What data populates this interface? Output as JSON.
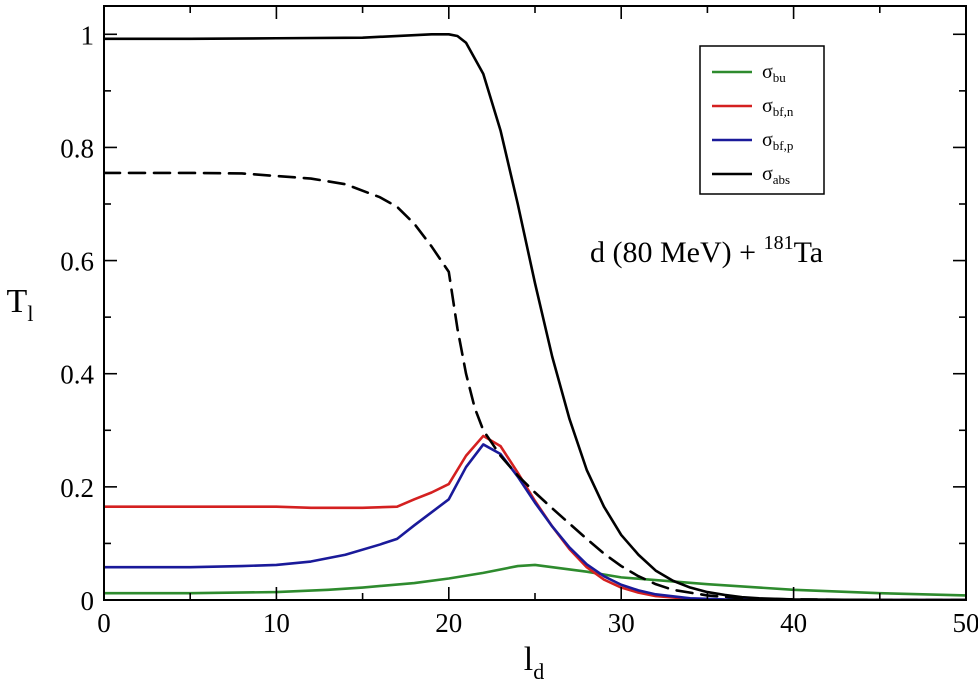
{
  "chart_data": {
    "type": "line",
    "title": "",
    "xlabel": "l",
    "xlabel_sub": "d",
    "ylabel": "T",
    "ylabel_sub": "l",
    "xlim": [
      0,
      50
    ],
    "ylim": [
      0,
      1.05
    ],
    "x_ticks": [
      0,
      10,
      20,
      30,
      40,
      50
    ],
    "x_tick_labels": [
      "0",
      "10",
      "20",
      "30",
      "40",
      "50"
    ],
    "y_ticks": [
      0,
      0.2,
      0.4,
      0.6,
      0.8,
      1
    ],
    "y_tick_labels": [
      "0",
      "0.2",
      "0.4",
      "0.6",
      "0.8",
      "1"
    ],
    "grid": false,
    "legend_position": "top-right",
    "annotation": {
      "prefix": "d (80 MeV) + ",
      "superscript": "181",
      "suffix": "Ta"
    },
    "series": [
      {
        "name": "σ_bu",
        "label": "σ",
        "label_sub": "bu",
        "color": "#2e8b2e",
        "dash": "solid",
        "in_legend": true,
        "x": [
          0,
          5,
          10,
          13,
          15,
          18,
          20,
          22,
          24,
          25,
          26,
          28,
          30,
          35,
          40,
          45,
          50
        ],
        "y": [
          0.012,
          0.012,
          0.014,
          0.018,
          0.022,
          0.03,
          0.038,
          0.048,
          0.06,
          0.062,
          0.058,
          0.05,
          0.04,
          0.028,
          0.018,
          0.012,
          0.008
        ]
      },
      {
        "name": "σ_bf,n",
        "label": "σ",
        "label_sub": "bf,n",
        "color": "#d42020",
        "dash": "solid",
        "in_legend": true,
        "x": [
          0,
          5,
          10,
          12,
          15,
          17,
          18,
          19,
          20,
          21,
          22,
          23,
          24,
          25,
          26,
          27,
          28,
          29,
          30,
          31,
          32,
          34,
          36,
          40,
          45,
          50
        ],
        "y": [
          0.165,
          0.165,
          0.165,
          0.163,
          0.163,
          0.165,
          0.178,
          0.19,
          0.205,
          0.255,
          0.29,
          0.272,
          0.225,
          0.175,
          0.13,
          0.09,
          0.058,
          0.036,
          0.022,
          0.013,
          0.007,
          0.002,
          0.0005,
          0,
          0,
          0
        ]
      },
      {
        "name": "σ_bf,p",
        "label": "σ",
        "label_sub": "bf,p",
        "color": "#1a1a9a",
        "dash": "solid",
        "in_legend": true,
        "x": [
          0,
          5,
          8,
          10,
          12,
          14,
          16,
          17,
          18,
          19,
          20,
          21,
          22,
          23,
          24,
          25,
          26,
          27,
          28,
          29,
          30,
          31,
          32,
          34,
          36,
          40,
          45,
          50
        ],
        "y": [
          0.058,
          0.058,
          0.06,
          0.062,
          0.068,
          0.08,
          0.098,
          0.108,
          0.132,
          0.155,
          0.178,
          0.235,
          0.275,
          0.258,
          0.218,
          0.172,
          0.13,
          0.093,
          0.063,
          0.042,
          0.027,
          0.017,
          0.01,
          0.003,
          0.001,
          0,
          0,
          0
        ]
      },
      {
        "name": "σ_abs",
        "label": "σ",
        "label_sub": "abs",
        "color": "#000000",
        "dash": "solid",
        "in_legend": true,
        "x": [
          0,
          5,
          10,
          15,
          19,
          20,
          20.5,
          21,
          22,
          23,
          24,
          25,
          26,
          27,
          28,
          29,
          30,
          31,
          32,
          33,
          34,
          35,
          36,
          37,
          38,
          40,
          42,
          45,
          50
        ],
        "y": [
          0.992,
          0.992,
          0.993,
          0.994,
          1.0,
          1.0,
          0.997,
          0.985,
          0.93,
          0.83,
          0.7,
          0.56,
          0.43,
          0.32,
          0.23,
          0.165,
          0.115,
          0.08,
          0.052,
          0.034,
          0.022,
          0.014,
          0.009,
          0.005,
          0.003,
          0.001,
          0.0005,
          0,
          0
        ]
      },
      {
        "name": "dashed",
        "label": "",
        "label_sub": "",
        "color": "#000000",
        "dash": "dashed",
        "in_legend": false,
        "x": [
          0,
          5,
          8,
          12,
          14,
          16,
          17,
          18,
          19,
          20,
          20.5,
          21,
          21.5,
          22,
          23,
          24,
          25,
          26,
          27,
          28,
          29,
          30,
          31,
          32,
          33,
          35,
          37,
          40,
          45,
          50
        ],
        "y": [
          0.755,
          0.755,
          0.754,
          0.745,
          0.735,
          0.712,
          0.695,
          0.665,
          0.625,
          0.58,
          0.48,
          0.4,
          0.34,
          0.3,
          0.255,
          0.22,
          0.19,
          0.162,
          0.135,
          0.108,
          0.082,
          0.06,
          0.042,
          0.028,
          0.018,
          0.008,
          0.003,
          0.001,
          0,
          0
        ]
      }
    ]
  }
}
